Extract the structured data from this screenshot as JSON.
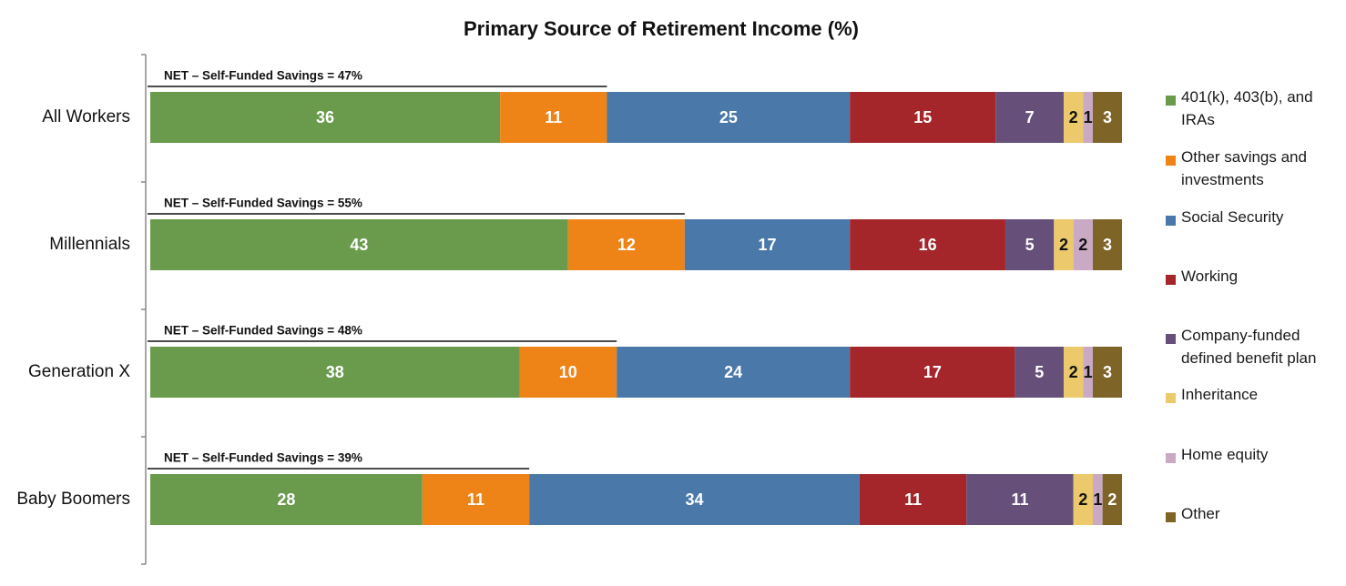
{
  "chart_data": {
    "type": "stacked-bar",
    "orientation": "horizontal",
    "title": "Primary Source of Retirement Income (%)",
    "categories": [
      "All Workers",
      "Millennials",
      "Generation X",
      "Baby Boomers"
    ],
    "annotations": [
      "NET – Self-Funded Savings = 47%",
      "NET – Self-Funded Savings = 55%",
      "NET – Self-Funded Savings = 48%",
      "NET – Self-Funded Savings = 39%"
    ],
    "series": [
      {
        "name": "401(k), 403(b), and IRAs",
        "color": "#6a9a4c",
        "values": [
          36,
          43,
          38,
          28
        ]
      },
      {
        "name": "Other savings and investments",
        "color": "#ee8418",
        "values": [
          11,
          12,
          10,
          11
        ]
      },
      {
        "name": "Social Security",
        "color": "#4a78a8",
        "values": [
          25,
          17,
          24,
          34
        ]
      },
      {
        "name": "Working",
        "color": "#a4262a",
        "values": [
          15,
          16,
          17,
          11
        ]
      },
      {
        "name": "Company-funded defined benefit plan",
        "color": "#66507a",
        "values": [
          7,
          5,
          5,
          11
        ]
      },
      {
        "name": "Inheritance",
        "color": "#ecc96a",
        "values": [
          2,
          2,
          2,
          2
        ]
      },
      {
        "name": "Home equity",
        "color": "#c9a9c4",
        "values": [
          1,
          2,
          1,
          1
        ]
      },
      {
        "name": "Other",
        "color": "#7f6428",
        "values": [
          3,
          3,
          3,
          2
        ]
      }
    ],
    "legend_position": "right"
  }
}
